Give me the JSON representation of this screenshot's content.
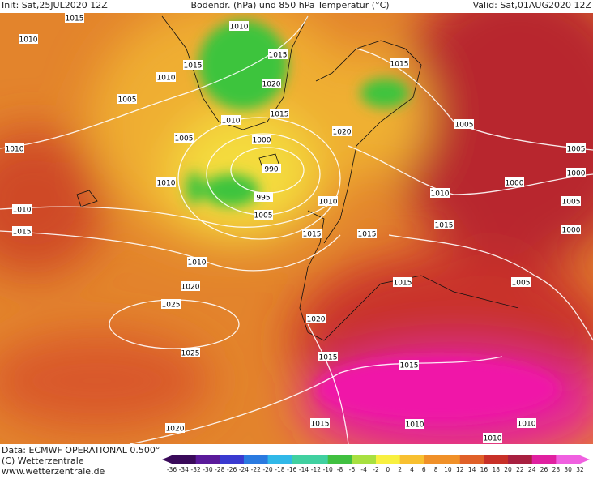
{
  "header": {
    "init": "Init: Sat,25JUL2020 12Z",
    "title": "Bodendr. (hPa) und 850 hPa Temperatur (°C)",
    "valid": "Valid: Sat,01AUG2020 12Z"
  },
  "isobar_labels": [
    "1015",
    "1010",
    "1010",
    "1015",
    "1015",
    "1010",
    "1020",
    "1015",
    "1005",
    "1015",
    "1010",
    "1005",
    "1000",
    "1020",
    "1005",
    "1010",
    "990",
    "1005",
    "1000",
    "1010",
    "995",
    "1010",
    "1010",
    "1000",
    "1005",
    "1010",
    "1005",
    "1015",
    "1015",
    "1015",
    "1000",
    "1015",
    "1010",
    "1020",
    "1015",
    "1005",
    "1025",
    "1020",
    "1025",
    "1015",
    "1015",
    "1015",
    "1010",
    "1020",
    "1010",
    "1010"
  ],
  "footer": {
    "data": "Data: ECMWF OPERATIONAL 0.500°",
    "copyright": "(C) Wetterzentrale",
    "url": "www.wetterzentrale.de"
  },
  "colorbar": {
    "labels": [
      -36,
      -34,
      -32,
      -30,
      -28,
      -26,
      -24,
      -22,
      -20,
      -18,
      -16,
      -14,
      -12,
      -10,
      -8,
      -6,
      -4,
      -2,
      0,
      2,
      4,
      6,
      8,
      10,
      12,
      14,
      16,
      18,
      20,
      22,
      24,
      26,
      28,
      30,
      32
    ]
  }
}
